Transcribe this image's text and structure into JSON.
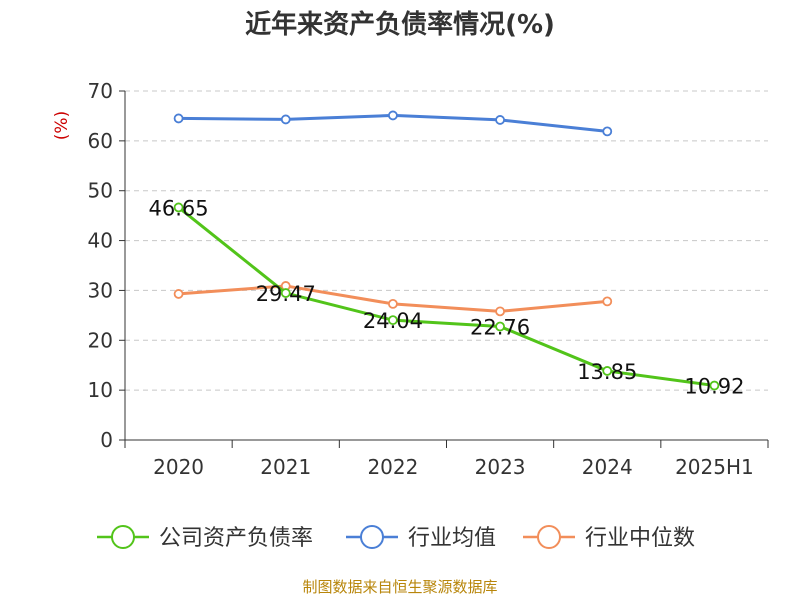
{
  "chart_data": {
    "type": "line",
    "title": "近年来资产负债率情况(%)",
    "ylabel": "(%)",
    "xlabel": "",
    "categories": [
      "2020",
      "2021",
      "2022",
      "2023",
      "2024",
      "2025H1"
    ],
    "ylim": [
      0,
      70
    ],
    "yticks": [
      0,
      10,
      20,
      30,
      40,
      50,
      60,
      70
    ],
    "grid": true,
    "legend_position": "bottom",
    "series": [
      {
        "name": "公司资产负债率",
        "color": "#52c41a",
        "values": [
          46.65,
          29.47,
          24.04,
          22.76,
          13.85,
          10.92
        ],
        "labels": [
          "46.65",
          "29.47",
          "24.04",
          "22.76",
          "13.85",
          "10.92"
        ]
      },
      {
        "name": "行业均值",
        "color": "#4a7fd6",
        "values": [
          64.5,
          64.3,
          65.1,
          64.2,
          61.9,
          null
        ]
      },
      {
        "name": "行业中位数",
        "color": "#f28e5a",
        "values": [
          29.3,
          30.9,
          27.3,
          25.8,
          27.8,
          null
        ]
      }
    ]
  },
  "source": "制图数据来自恒生聚源数据库"
}
